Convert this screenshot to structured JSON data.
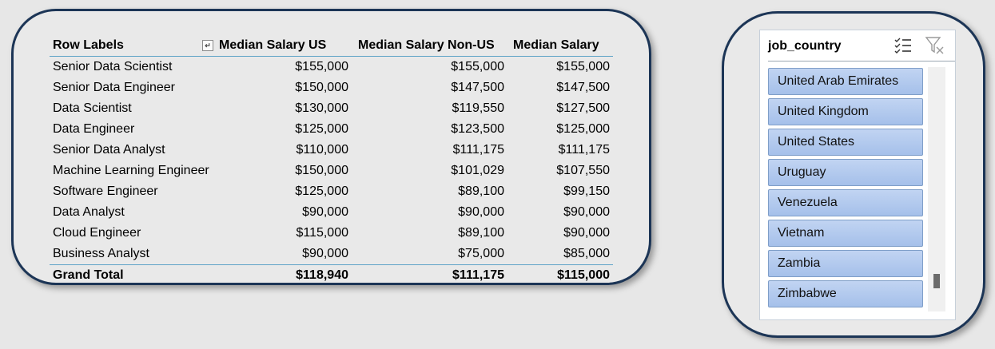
{
  "pivot": {
    "headers": [
      "Row Labels",
      "Median Salary US",
      "Median Salary Non-US",
      "Median Salary"
    ],
    "rows": [
      {
        "label": "Senior Data Scientist",
        "us": "$155,000",
        "non_us": "$155,000",
        "all": "$155,000"
      },
      {
        "label": "Senior Data Engineer",
        "us": "$150,000",
        "non_us": "$147,500",
        "all": "$147,500"
      },
      {
        "label": "Data Scientist",
        "us": "$130,000",
        "non_us": "$119,550",
        "all": "$127,500"
      },
      {
        "label": "Data Engineer",
        "us": "$125,000",
        "non_us": "$123,500",
        "all": "$125,000"
      },
      {
        "label": "Senior Data Analyst",
        "us": "$110,000",
        "non_us": "$111,175",
        "all": "$111,175"
      },
      {
        "label": "Machine Learning Engineer",
        "us": "$150,000",
        "non_us": "$101,029",
        "all": "$107,550"
      },
      {
        "label": "Software Engineer",
        "us": "$125,000",
        "non_us": "$89,100",
        "all": "$99,150"
      },
      {
        "label": "Data Analyst",
        "us": "$90,000",
        "non_us": "$90,000",
        "all": "$90,000"
      },
      {
        "label": "Cloud Engineer",
        "us": "$115,000",
        "non_us": "$89,100",
        "all": "$90,000"
      },
      {
        "label": "Business Analyst",
        "us": "$90,000",
        "non_us": "$75,000",
        "all": "$85,000"
      }
    ],
    "total": {
      "label": "Grand Total",
      "us": "$118,940",
      "non_us": "$111,175",
      "all": "$115,000"
    }
  },
  "slicer": {
    "title": "job_country",
    "items": [
      "United Arab Emirates",
      "United Kingdom",
      "United States",
      "Uruguay",
      "Venezuela",
      "Vietnam",
      "Zambia",
      "Zimbabwe"
    ],
    "icons": {
      "multiselect": "multi-select-icon",
      "clear": "clear-filter-icon"
    },
    "scroll_position": 0.93
  },
  "colors": {
    "panel_border": "#1c3556",
    "header_rule": "#5ea3c7",
    "slicer_item": "#b3cbf0"
  }
}
